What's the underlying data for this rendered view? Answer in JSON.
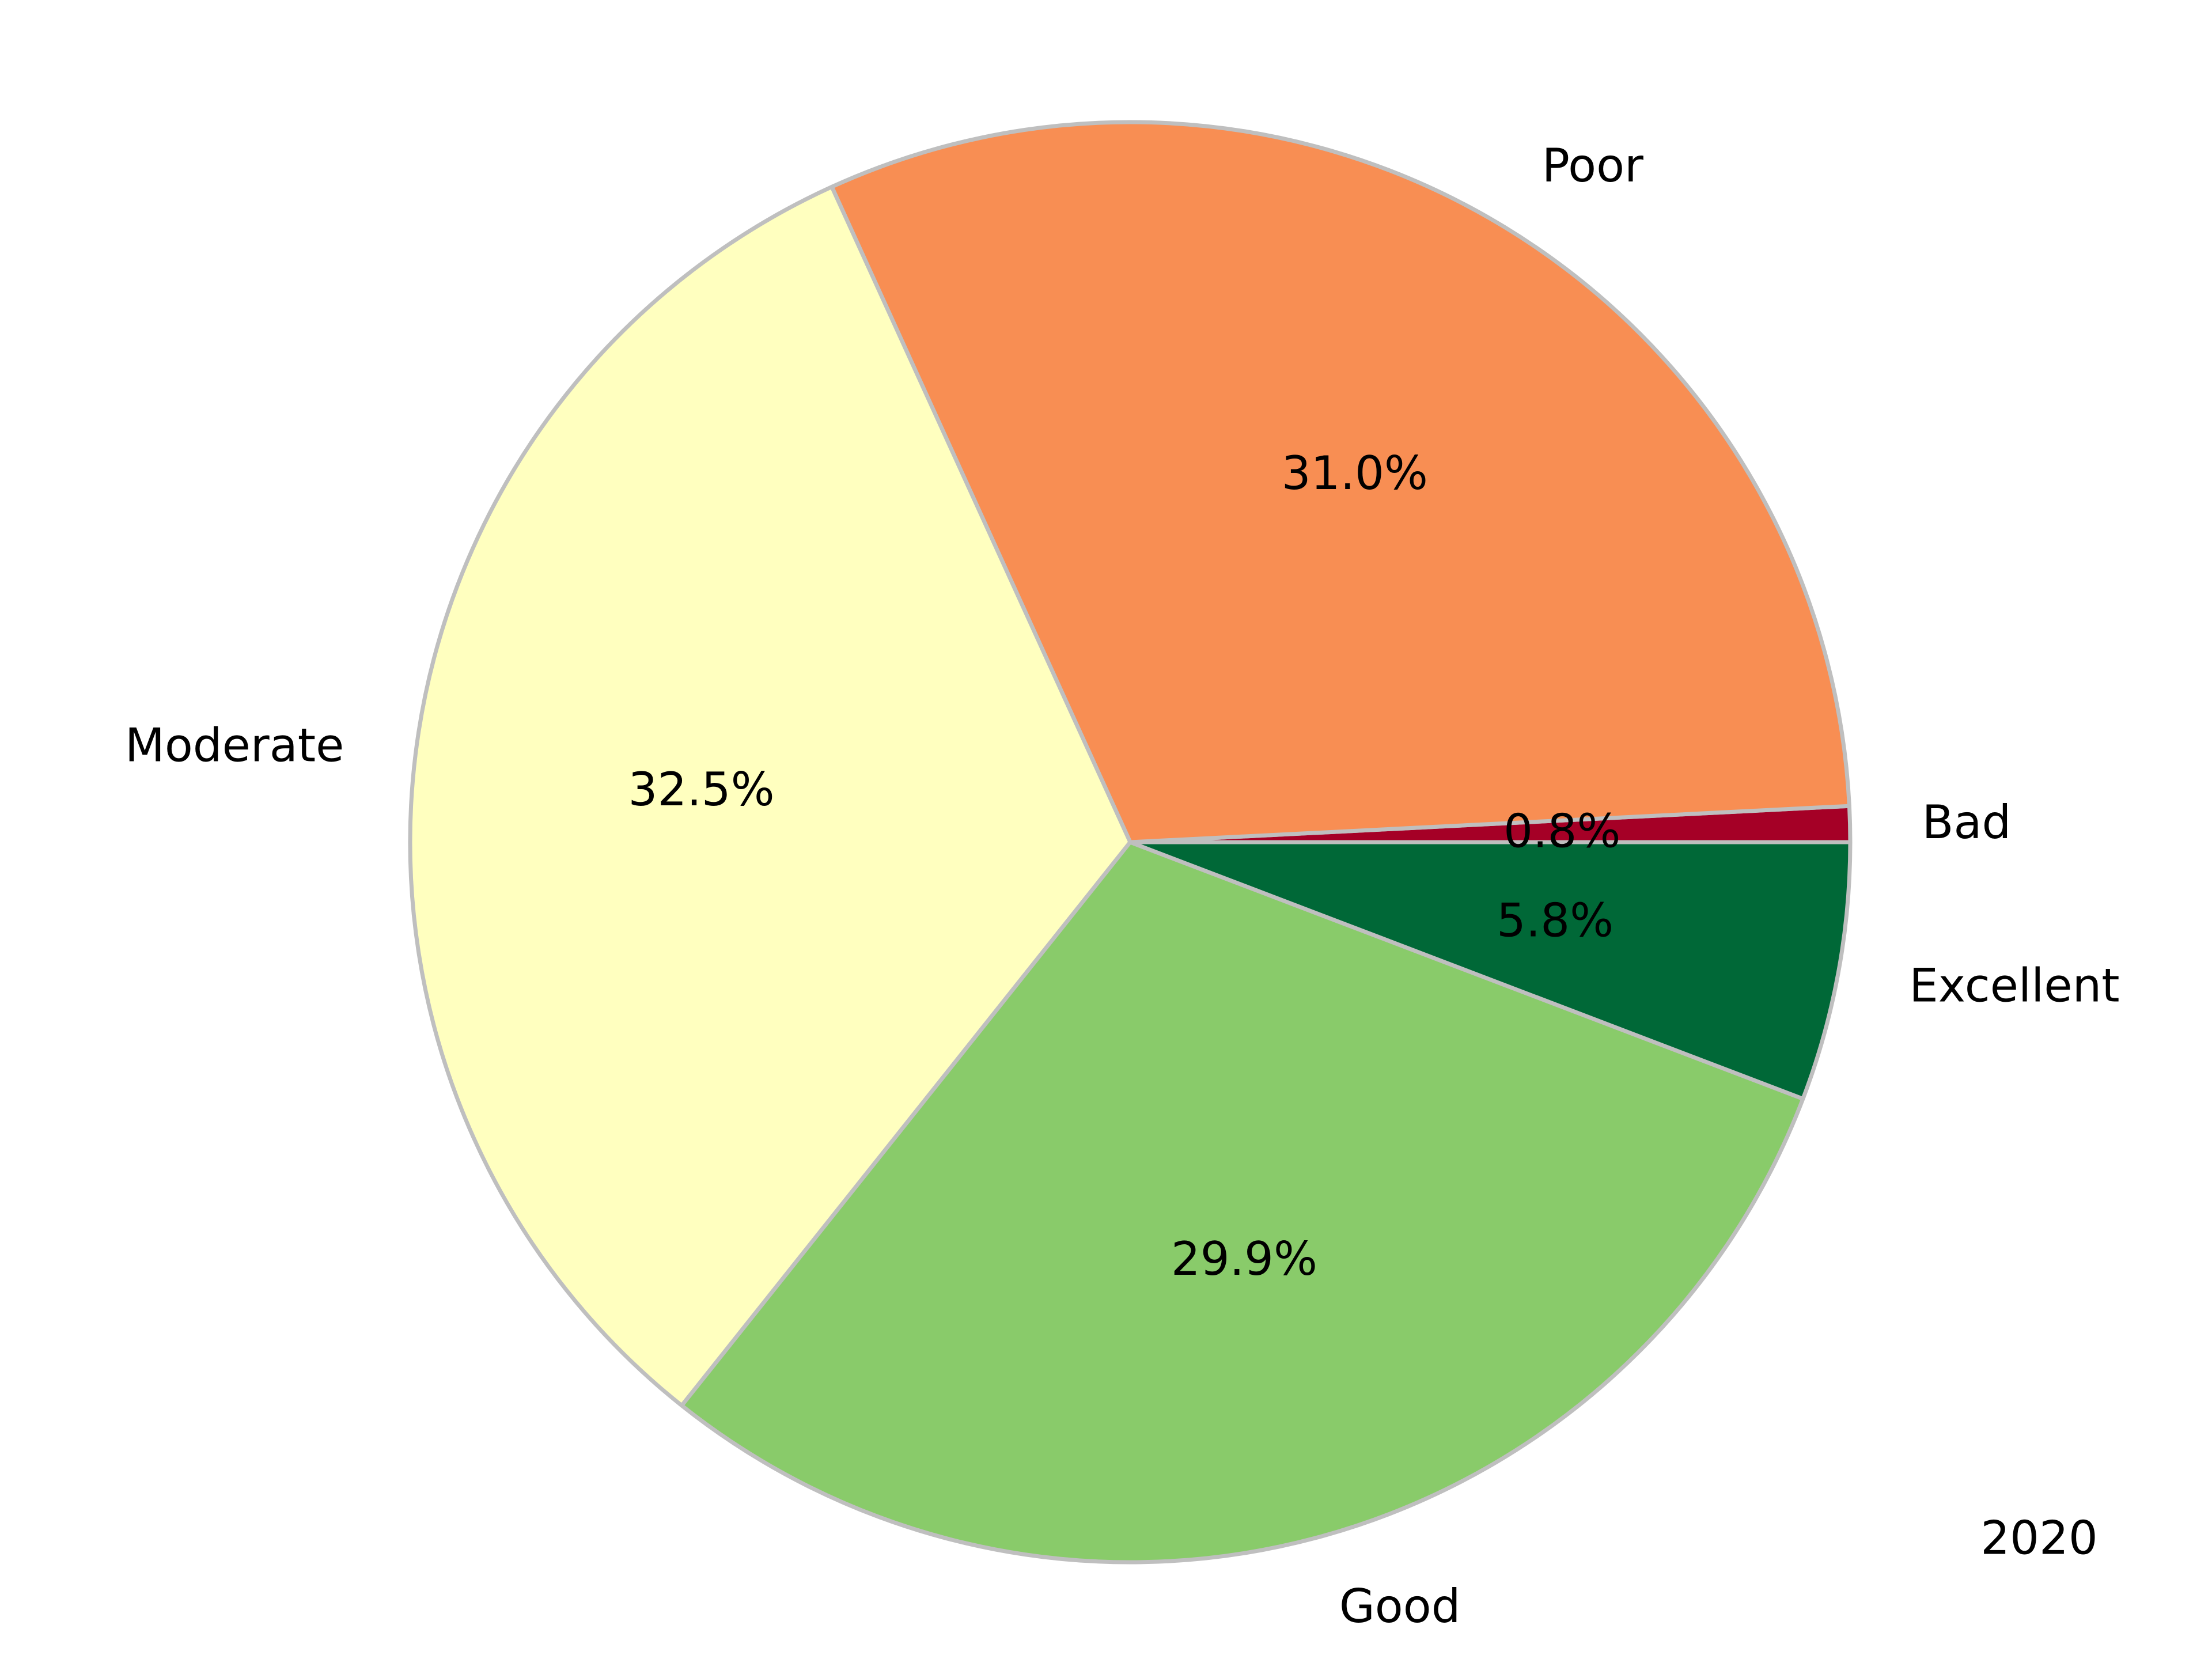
{
  "chart_data": {
    "type": "pie",
    "categories": [
      "Bad",
      "Poor",
      "Moderate",
      "Good",
      "Excellent"
    ],
    "values": [
      0.8,
      31.0,
      32.5,
      29.9,
      5.8
    ],
    "value_labels": [
      "0.8%",
      "31.0%",
      "32.5%",
      "29.9%",
      "5.8%"
    ],
    "colors": [
      "#a50026",
      "#f88e53",
      "#ffffbf",
      "#89cb6a",
      "#006837"
    ],
    "edge_color": "#bfbfbf",
    "start_angle_deg": 0,
    "direction": "counterclockwise",
    "annotation": "2020"
  }
}
